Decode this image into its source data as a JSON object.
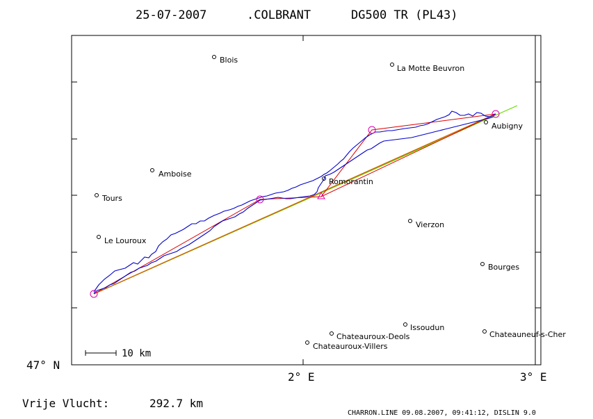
{
  "header": {
    "date": "25-07-2007",
    "pilot": ".COLBRANT",
    "glider": "DG500 TR (PL43)"
  },
  "axes": {
    "y_label": "47° N",
    "x_labels": [
      "2° E",
      "3° E"
    ]
  },
  "scale_bar": {
    "label": "10 km"
  },
  "towns": [
    {
      "name": "Blois"
    },
    {
      "name": "La Motte Beuvron"
    },
    {
      "name": "Aubigny"
    },
    {
      "name": "Amboise"
    },
    {
      "name": "Romorantin"
    },
    {
      "name": "Tours"
    },
    {
      "name": "Vierzon"
    },
    {
      "name": "Le Louroux"
    },
    {
      "name": "Bourges"
    },
    {
      "name": "Issoudun"
    },
    {
      "name": "Chateauroux-Deols"
    },
    {
      "name": "Chateauneuf-s-Cher"
    },
    {
      "name": "Chateauroux-Villers"
    }
  ],
  "result": {
    "label": "Vrije Vlucht:",
    "value": "292.7 km"
  },
  "footer": "CHARRON.LINE 09.08.2007, 09:41:12, DISLIN 9.0",
  "colors": {
    "track": "#0000cc",
    "task_leg": "#dd0000",
    "turnpoint": "#dd00aa",
    "green_line": "#66dd00",
    "orange_line": "#cc6600"
  }
}
